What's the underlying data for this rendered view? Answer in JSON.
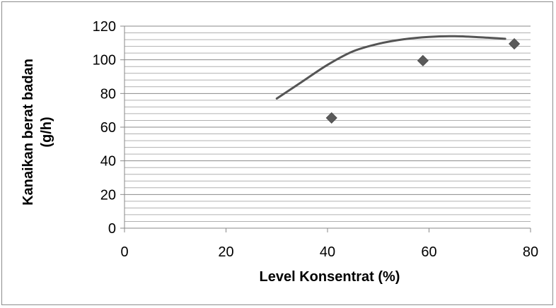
{
  "chart_data": {
    "type": "scatter",
    "xlabel": "Level Konsentrat (%)",
    "ylabel_lines": [
      "Kanaikan berat badan",
      "(g/h)"
    ],
    "xlim": [
      0,
      80
    ],
    "ylim": [
      0,
      120
    ],
    "x_ticks": [
      0,
      20,
      40,
      60,
      80
    ],
    "y_ticks": [
      0,
      20,
      40,
      60,
      80,
      100,
      120
    ],
    "y_minor_step": 4,
    "grid": true,
    "legend": "none",
    "series": [
      {
        "kind": "points",
        "marker": "diamond",
        "color": "#5a5a5a",
        "x": [
          40.8,
          58.8,
          76.8
        ],
        "y": [
          65.5,
          99.5,
          109.5
        ]
      },
      {
        "kind": "trendline",
        "color": "#555555",
        "x": [
          30,
          35,
          40,
          45,
          50,
          55,
          60,
          65,
          70,
          75
        ],
        "y": [
          77,
          87,
          97,
          105,
          109.5,
          112.2,
          113.6,
          114,
          113.4,
          112.5
        ]
      }
    ]
  }
}
